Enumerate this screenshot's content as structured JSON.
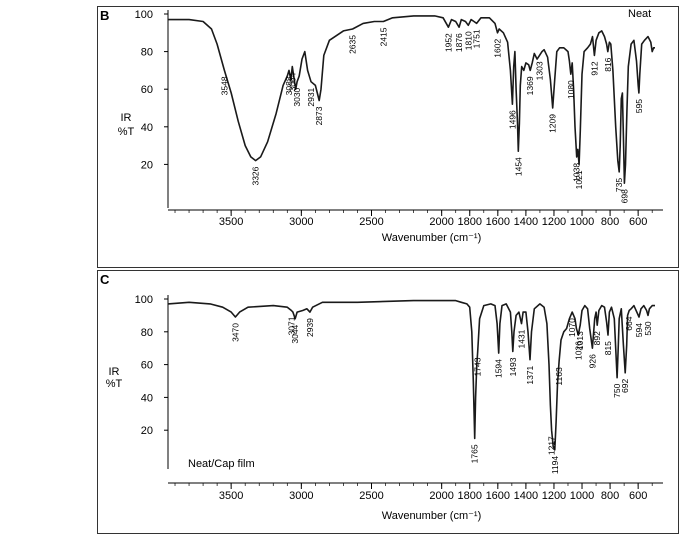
{
  "chart_data": [
    {
      "panel": "B",
      "type": "line",
      "corner_label": "Neat",
      "ylabel_top": "IR",
      "ylabel_bottom": "%T",
      "xlabel": "Wavenumber (cm⁻¹)",
      "xlim": [
        3950,
        480
      ],
      "ylim": [
        0,
        100
      ],
      "x_ticks": [
        {
          "v": 3500,
          "label": "3500"
        },
        {
          "v": 3000,
          "label": "3000"
        },
        {
          "v": 2500,
          "label": "2500"
        },
        {
          "v": 2000,
          "label": "2000"
        },
        {
          "v": 1800,
          "label": "1800"
        },
        {
          "v": 1600,
          "label": "1600"
        },
        {
          "v": 1400,
          "label": "1400"
        },
        {
          "v": 1200,
          "label": "1200"
        },
        {
          "v": 1000,
          "label": "1000"
        },
        {
          "v": 800,
          "label": "800"
        },
        {
          "v": 600,
          "label": "600"
        }
      ],
      "y_ticks": [
        {
          "v": 100,
          "label": "100"
        },
        {
          "v": 80,
          "label": "80"
        },
        {
          "v": 60,
          "label": "60"
        },
        {
          "v": 40,
          "label": "40"
        },
        {
          "v": 20,
          "label": "20"
        }
      ],
      "spectrum": [
        [
          3950,
          97
        ],
        [
          3800,
          97
        ],
        [
          3700,
          96
        ],
        [
          3640,
          92
        ],
        [
          3600,
          84
        ],
        [
          3548,
          70
        ],
        [
          3500,
          58
        ],
        [
          3450,
          43
        ],
        [
          3400,
          30
        ],
        [
          3360,
          24
        ],
        [
          3326,
          22
        ],
        [
          3290,
          24
        ],
        [
          3240,
          32
        ],
        [
          3180,
          47
        ],
        [
          3130,
          62
        ],
        [
          3100,
          67
        ],
        [
          3088,
          70
        ],
        [
          3075,
          65
        ],
        [
          3064,
          72
        ],
        [
          3040,
          60
        ],
        [
          3030,
          64
        ],
        [
          3015,
          67
        ],
        [
          2995,
          76
        ],
        [
          2975,
          80
        ],
        [
          2955,
          70
        ],
        [
          2931,
          64
        ],
        [
          2900,
          62
        ],
        [
          2873,
          54
        ],
        [
          2860,
          60
        ],
        [
          2840,
          78
        ],
        [
          2800,
          86
        ],
        [
          2700,
          91
        ],
        [
          2635,
          92
        ],
        [
          2560,
          95
        ],
        [
          2480,
          96
        ],
        [
          2415,
          96
        ],
        [
          2350,
          98
        ],
        [
          2200,
          99
        ],
        [
          2050,
          99
        ],
        [
          1990,
          98
        ],
        [
          1952,
          93
        ],
        [
          1930,
          97
        ],
        [
          1900,
          96
        ],
        [
          1876,
          93
        ],
        [
          1860,
          97
        ],
        [
          1830,
          96
        ],
        [
          1810,
          94
        ],
        [
          1790,
          97
        ],
        [
          1770,
          96
        ],
        [
          1751,
          95
        ],
        [
          1720,
          98
        ],
        [
          1660,
          98
        ],
        [
          1620,
          95
        ],
        [
          1602,
          90
        ],
        [
          1590,
          92
        ],
        [
          1560,
          90
        ],
        [
          1530,
          85
        ],
        [
          1510,
          70
        ],
        [
          1496,
          52
        ],
        [
          1487,
          72
        ],
        [
          1478,
          80
        ],
        [
          1470,
          60
        ],
        [
          1460,
          42
        ],
        [
          1454,
          27
        ],
        [
          1446,
          42
        ],
        [
          1440,
          62
        ],
        [
          1430,
          72
        ],
        [
          1415,
          70
        ],
        [
          1400,
          74
        ],
        [
          1380,
          73
        ],
        [
          1369,
          70
        ],
        [
          1355,
          74
        ],
        [
          1340,
          79
        ],
        [
          1320,
          76
        ],
        [
          1303,
          78
        ],
        [
          1285,
          80
        ],
        [
          1270,
          81
        ],
        [
          1245,
          77
        ],
        [
          1225,
          65
        ],
        [
          1209,
          50
        ],
        [
          1195,
          65
        ],
        [
          1180,
          80
        ],
        [
          1160,
          82
        ],
        [
          1130,
          82
        ],
        [
          1100,
          80
        ],
        [
          1090,
          75
        ],
        [
          1080,
          68
        ],
        [
          1070,
          74
        ],
        [
          1060,
          60
        ],
        [
          1050,
          40
        ],
        [
          1038,
          24
        ],
        [
          1030,
          28
        ],
        [
          1021,
          20
        ],
        [
          1012,
          38
        ],
        [
          1000,
          68
        ],
        [
          985,
          80
        ],
        [
          960,
          82
        ],
        [
          940,
          84
        ],
        [
          925,
          88
        ],
        [
          912,
          78
        ],
        [
          900,
          86
        ],
        [
          880,
          90
        ],
        [
          860,
          91
        ],
        [
          840,
          88
        ],
        [
          825,
          84
        ],
        [
          816,
          80
        ],
        [
          805,
          85
        ],
        [
          795,
          84
        ],
        [
          780,
          70
        ],
        [
          760,
          40
        ],
        [
          745,
          22
        ],
        [
          735,
          16
        ],
        [
          728,
          30
        ],
        [
          720,
          55
        ],
        [
          712,
          58
        ],
        [
          705,
          35
        ],
        [
          698,
          10
        ],
        [
          690,
          20
        ],
        [
          680,
          48
        ],
        [
          670,
          72
        ],
        [
          650,
          84
        ],
        [
          630,
          86
        ],
        [
          612,
          75
        ],
        [
          600,
          62
        ],
        [
          595,
          58
        ],
        [
          588,
          68
        ],
        [
          575,
          84
        ],
        [
          555,
          86
        ],
        [
          530,
          88
        ],
        [
          510,
          85
        ],
        [
          500,
          80
        ],
        [
          490,
          82
        ],
        [
          480,
          82
        ]
      ],
      "peak_labels": [
        {
          "wn": 3548,
          "label": "3548"
        },
        {
          "wn": 3326,
          "label": "3326"
        },
        {
          "wn": 3088,
          "label": "3088"
        },
        {
          "wn": 3064,
          "label": "3064"
        },
        {
          "wn": 3030,
          "label": "3030"
        },
        {
          "wn": 2931,
          "label": "2931"
        },
        {
          "wn": 2873,
          "label": "2873"
        },
        {
          "wn": 2635,
          "label": "2635"
        },
        {
          "wn": 2415,
          "label": "2415"
        },
        {
          "wn": 1952,
          "label": "1952"
        },
        {
          "wn": 1876,
          "label": "1876"
        },
        {
          "wn": 1810,
          "label": "1810"
        },
        {
          "wn": 1751,
          "label": "1751"
        },
        {
          "wn": 1602,
          "label": "1602"
        },
        {
          "wn": 1496,
          "label": "1496"
        },
        {
          "wn": 1454,
          "label": "1454"
        },
        {
          "wn": 1369,
          "label": "1369"
        },
        {
          "wn": 1303,
          "label": "1303"
        },
        {
          "wn": 1209,
          "label": "1209"
        },
        {
          "wn": 1080,
          "label": "1080"
        },
        {
          "wn": 1038,
          "label": "1038"
        },
        {
          "wn": 1021,
          "label": "1021"
        },
        {
          "wn": 912,
          "label": "912"
        },
        {
          "wn": 816,
          "label": "816"
        },
        {
          "wn": 735,
          "label": "735"
        },
        {
          "wn": 698,
          "label": "698"
        },
        {
          "wn": 595,
          "label": "595"
        }
      ]
    },
    {
      "panel": "C",
      "type": "line",
      "corner_label": "Neat/Cap film",
      "ylabel_top": "IR",
      "ylabel_bottom": "%T",
      "xlabel": "Wavenumber (cm⁻¹)",
      "xlim": [
        3950,
        480
      ],
      "ylim": [
        0,
        100
      ],
      "x_ticks": [
        {
          "v": 3500,
          "label": "3500"
        },
        {
          "v": 3000,
          "label": "3000"
        },
        {
          "v": 2500,
          "label": "2500"
        },
        {
          "v": 2000,
          "label": "2000"
        },
        {
          "v": 1800,
          "label": "1800"
        },
        {
          "v": 1600,
          "label": "1600"
        },
        {
          "v": 1400,
          "label": "1400"
        },
        {
          "v": 1200,
          "label": "1200"
        },
        {
          "v": 1000,
          "label": "1000"
        },
        {
          "v": 800,
          "label": "800"
        },
        {
          "v": 600,
          "label": "600"
        }
      ],
      "y_ticks": [
        {
          "v": 100,
          "label": "100"
        },
        {
          "v": 80,
          "label": "80"
        },
        {
          "v": 60,
          "label": "60"
        },
        {
          "v": 40,
          "label": "40"
        },
        {
          "v": 20,
          "label": "20"
        }
      ],
      "spectrum": [
        [
          3950,
          97
        ],
        [
          3800,
          98
        ],
        [
          3650,
          97
        ],
        [
          3560,
          95
        ],
        [
          3500,
          92
        ],
        [
          3470,
          89
        ],
        [
          3440,
          92
        ],
        [
          3380,
          95
        ],
        [
          3200,
          96
        ],
        [
          3100,
          95
        ],
        [
          3071,
          93
        ],
        [
          3060,
          92
        ],
        [
          3044,
          88
        ],
        [
          3030,
          92
        ],
        [
          2990,
          93
        ],
        [
          2960,
          94
        ],
        [
          2939,
          92
        ],
        [
          2920,
          95
        ],
        [
          2850,
          98
        ],
        [
          2600,
          98
        ],
        [
          2200,
          99
        ],
        [
          2000,
          99
        ],
        [
          1900,
          99
        ],
        [
          1860,
          98
        ],
        [
          1820,
          97
        ],
        [
          1800,
          95
        ],
        [
          1785,
          80
        ],
        [
          1775,
          50
        ],
        [
          1765,
          15
        ],
        [
          1758,
          40
        ],
        [
          1750,
          60
        ],
        [
          1743,
          68
        ],
        [
          1730,
          88
        ],
        [
          1700,
          96
        ],
        [
          1650,
          97
        ],
        [
          1620,
          96
        ],
        [
          1605,
          85
        ],
        [
          1594,
          67
        ],
        [
          1585,
          85
        ],
        [
          1570,
          96
        ],
        [
          1540,
          97
        ],
        [
          1510,
          92
        ],
        [
          1500,
          80
        ],
        [
          1493,
          68
        ],
        [
          1485,
          80
        ],
        [
          1470,
          90
        ],
        [
          1450,
          92
        ],
        [
          1431,
          85
        ],
        [
          1420,
          92
        ],
        [
          1400,
          92
        ],
        [
          1385,
          80
        ],
        [
          1371,
          63
        ],
        [
          1360,
          80
        ],
        [
          1340,
          94
        ],
        [
          1300,
          97
        ],
        [
          1270,
          95
        ],
        [
          1250,
          85
        ],
        [
          1235,
          60
        ],
        [
          1225,
          35
        ],
        [
          1217,
          20
        ],
        [
          1205,
          10
        ],
        [
          1194,
          8
        ],
        [
          1185,
          25
        ],
        [
          1175,
          48
        ],
        [
          1163,
          62
        ],
        [
          1150,
          75
        ],
        [
          1130,
          80
        ],
        [
          1110,
          82
        ],
        [
          1090,
          88
        ],
        [
          1070,
          92
        ],
        [
          1050,
          88
        ],
        [
          1040,
          82
        ],
        [
          1026,
          78
        ],
        [
          1018,
          82
        ],
        [
          1013,
          84
        ],
        [
          1000,
          93
        ],
        [
          980,
          96
        ],
        [
          960,
          94
        ],
        [
          945,
          82
        ],
        [
          926,
          70
        ],
        [
          910,
          88
        ],
        [
          900,
          92
        ],
        [
          892,
          84
        ],
        [
          880,
          93
        ],
        [
          860,
          96
        ],
        [
          840,
          95
        ],
        [
          825,
          86
        ],
        [
          815,
          78
        ],
        [
          805,
          92
        ],
        [
          790,
          95
        ],
        [
          770,
          88
        ],
        [
          760,
          70
        ],
        [
          750,
          52
        ],
        [
          742,
          70
        ],
        [
          735,
          88
        ],
        [
          720,
          94
        ],
        [
          705,
          72
        ],
        [
          692,
          55
        ],
        [
          682,
          72
        ],
        [
          675,
          90
        ],
        [
          664,
          93
        ],
        [
          650,
          94
        ],
        [
          630,
          96
        ],
        [
          610,
          92
        ],
        [
          594,
          89
        ],
        [
          580,
          94
        ],
        [
          560,
          96
        ],
        [
          540,
          93
        ],
        [
          530,
          90
        ],
        [
          520,
          94
        ],
        [
          500,
          96
        ],
        [
          480,
          96
        ]
      ],
      "peak_labels": [
        {
          "wn": 3470,
          "label": "3470"
        },
        {
          "wn": 3071,
          "label": "3071"
        },
        {
          "wn": 3044,
          "label": "3044"
        },
        {
          "wn": 2939,
          "label": "2939"
        },
        {
          "wn": 1765,
          "label": "1765"
        },
        {
          "wn": 1743,
          "label": "1743"
        },
        {
          "wn": 1594,
          "label": "1594"
        },
        {
          "wn": 1493,
          "label": "1493"
        },
        {
          "wn": 1431,
          "label": "1431"
        },
        {
          "wn": 1371,
          "label": "1371"
        },
        {
          "wn": 1217,
          "label": "1217"
        },
        {
          "wn": 1194,
          "label": "1194"
        },
        {
          "wn": 1163,
          "label": "1163"
        },
        {
          "wn": 1070,
          "label": "1070"
        },
        {
          "wn": 1026,
          "label": "1026"
        },
        {
          "wn": 1013,
          "label": "1013"
        },
        {
          "wn": 926,
          "label": "926"
        },
        {
          "wn": 892,
          "label": "892"
        },
        {
          "wn": 815,
          "label": "815"
        },
        {
          "wn": 750,
          "label": "750"
        },
        {
          "wn": 692,
          "label": "692"
        },
        {
          "wn": 664,
          "label": "664"
        },
        {
          "wn": 594,
          "label": "594"
        },
        {
          "wn": 530,
          "label": "530"
        }
      ]
    }
  ],
  "panels": {
    "b_letter": "B",
    "c_letter": "C"
  }
}
